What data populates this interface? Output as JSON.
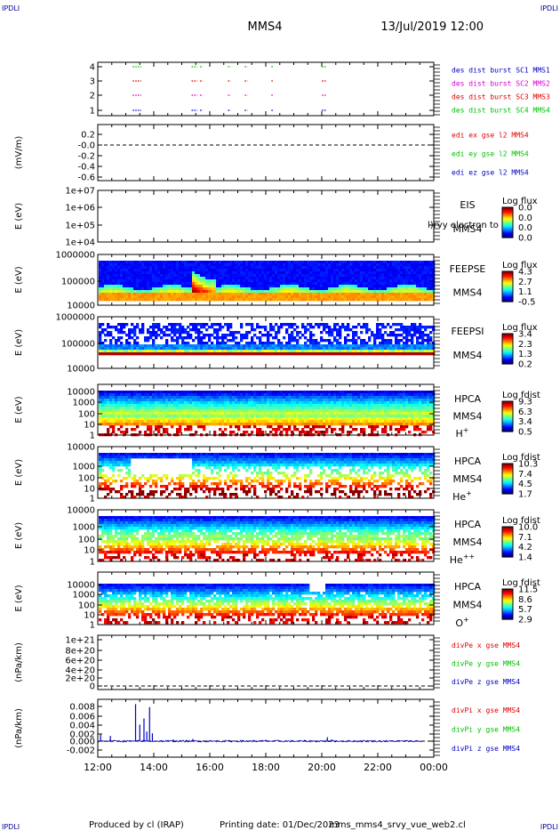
{
  "header": {
    "corner_tl": "IPDLI",
    "corner_tr": "IPDLI",
    "corner_bl": "IPDLI",
    "corner_br": "IPDLI",
    "mission": "MMS4",
    "datetime": "13/Jul/2019 12:00"
  },
  "footer": {
    "produced_by": "Produced by cl (IRAP)",
    "printing_date": "Printing date: 01/Dec/2023",
    "filename": "mms_mms4_srvy_vue_web2.cl"
  },
  "colors": {
    "red": "#e00000",
    "magenta": "#d000d0",
    "green": "#00c000",
    "blue": "#0000c0"
  },
  "chart_data": {
    "type": "multi-panel",
    "x_axis": {
      "range": [
        "12:00",
        "00:00"
      ],
      "tick_labels": [
        "12:00",
        "14:00",
        "16:00",
        "18:00",
        "20:00",
        "22:00",
        "00:00"
      ]
    },
    "panels": [
      {
        "type": "scatter",
        "id": "burst",
        "yticks": [
          "4",
          "3",
          "2",
          "1"
        ],
        "legend": [
          {
            "text": "des dist burst SC1 MMS1",
            "color": "blue"
          },
          {
            "text": "des dist burst SC2 MMS2",
            "color": "magenta"
          },
          {
            "text": "des dist burst SC3 MMS3",
            "color": "red"
          },
          {
            "text": "des dist burst SC4 MMS4",
            "color": "green"
          }
        ],
        "segments_hours": [
          [
            1.25,
            1.55
          ],
          [
            3.35,
            3.55
          ],
          [
            3.65,
            3.75
          ],
          [
            4.65,
            4.75
          ],
          [
            5.25,
            5.35
          ],
          [
            6.2,
            6.25
          ],
          [
            8.0,
            8.15
          ]
        ]
      },
      {
        "type": "line",
        "id": "edi",
        "ylabel": "(mV/m)",
        "yticks": [
          "0.2",
          "-0.0",
          "-0.2",
          "-0.4",
          "-0.6"
        ],
        "legend": [
          {
            "text": "edi ex gse l2 MMS4",
            "color": "red"
          },
          {
            "text": "edi ey gse l2 MMS4",
            "color": "green"
          },
          {
            "text": "edi ez gse l2 MMS4",
            "color": "blue"
          }
        ]
      },
      {
        "type": "heatmap",
        "id": "eis",
        "ylabel": "E (eV)",
        "yticks": [
          "1e+07",
          "1e+06",
          "1e+05",
          "1e+04"
        ],
        "label_lines": [
          "EIS",
          "MMS4"
        ],
        "overlay": "l)rvy electron to",
        "colorbar_title": "Log flux",
        "colorbar_ticks": [
          "0.0",
          "0.0",
          "0.0",
          "0.0"
        ]
      },
      {
        "type": "heatmap",
        "id": "feepse",
        "ylabel": "E (eV)",
        "yticks": [
          "1000000",
          "100000",
          "10000"
        ],
        "label_lines": [
          "FEEPSE",
          "MMS4"
        ],
        "colorbar_title": "Log flux",
        "colorbar_ticks": [
          "4.3",
          "2.7",
          "1.1",
          "-0.5"
        ]
      },
      {
        "type": "heatmap",
        "id": "feepsi",
        "ylabel": "E (eV)",
        "yticks": [
          "1000000",
          "100000",
          "10000"
        ],
        "label_lines": [
          "FEEPSI",
          "MMS4"
        ],
        "colorbar_title": "Log flux",
        "colorbar_ticks": [
          "3.4",
          "2.3",
          "1.3",
          "0.2"
        ]
      },
      {
        "type": "heatmap",
        "id": "hpca_h",
        "ylabel": "E (eV)",
        "yticks": [
          "10000",
          "1000",
          "100",
          "10",
          "1"
        ],
        "label_lines": [
          "HPCA",
          "MMS4"
        ],
        "species": "H",
        "species_sup": "+",
        "colorbar_title": "Log fdist",
        "colorbar_ticks": [
          "9.3",
          "6.3",
          "3.4",
          "0.5"
        ]
      },
      {
        "type": "heatmap",
        "id": "hpca_he",
        "ylabel": "E (eV)",
        "yticks": [
          "10000",
          "1000",
          "100",
          "10",
          "1"
        ],
        "label_lines": [
          "HPCA",
          "MMS4"
        ],
        "species": "He",
        "species_sup": "+",
        "colorbar_title": "Log fdist",
        "colorbar_ticks": [
          "10.3",
          "7.4",
          "4.5",
          "1.7"
        ]
      },
      {
        "type": "heatmap",
        "id": "hpca_hepp",
        "ylabel": "E (eV)",
        "yticks": [
          "10000",
          "1000",
          "100",
          "10",
          "1"
        ],
        "label_lines": [
          "HPCA",
          "MMS4"
        ],
        "species": "He",
        "species_sup": "++",
        "colorbar_title": "Log fdist",
        "colorbar_ticks": [
          "10.0",
          "7.1",
          "4.2",
          "1.4"
        ]
      },
      {
        "type": "heatmap",
        "id": "hpca_o",
        "ylabel": "E (eV)",
        "yticks": [
          "10000",
          "1000",
          "100",
          "10",
          "1"
        ],
        "label_lines": [
          "HPCA",
          "MMS4"
        ],
        "species": "O",
        "species_sup": "+",
        "colorbar_title": "Log fdist",
        "colorbar_ticks": [
          "11.5",
          "8.6",
          "5.7",
          "2.9"
        ]
      },
      {
        "type": "line",
        "id": "divpe",
        "ylabel": "(nPa/km)",
        "yticks": [
          "1e+21",
          "8e+20",
          "6e+20",
          "4e+20",
          "2e+20",
          "0"
        ],
        "legend": [
          {
            "text": "divPe x gse MMS4",
            "color": "red"
          },
          {
            "text": "divPe y gse MMS4",
            "color": "green"
          },
          {
            "text": "divPe z gse MMS4",
            "color": "blue"
          }
        ]
      },
      {
        "type": "line",
        "id": "divpi",
        "ylabel": "(nPa/km)",
        "yticks": [
          "0.008",
          "0.006",
          "0.004",
          "0.002",
          "0.000",
          "-0.002"
        ],
        "ylim": [
          -0.002,
          0.009
        ],
        "legend": [
          {
            "text": "divPi x gse MMS4",
            "color": "red"
          },
          {
            "text": "divPi y gse MMS4",
            "color": "green"
          },
          {
            "text": "divPi z gse MMS4",
            "color": "blue"
          }
        ],
        "spikes": [
          {
            "x_hour": 0.1,
            "y": 0.0015
          },
          {
            "x_hour": 0.45,
            "y": 0.0012
          },
          {
            "x_hour": 1.35,
            "y": 0.0085
          },
          {
            "x_hour": 1.5,
            "y": 0.0038
          },
          {
            "x_hour": 1.65,
            "y": 0.0052
          },
          {
            "x_hour": 1.75,
            "y": 0.0022
          },
          {
            "x_hour": 1.85,
            "y": 0.0078
          },
          {
            "x_hour": 1.95,
            "y": 0.0018
          },
          {
            "x_hour": 2.7,
            "y": 0.0004
          },
          {
            "x_hour": 3.4,
            "y": 0.0005
          },
          {
            "x_hour": 6.0,
            "y": 0.0003
          },
          {
            "x_hour": 8.2,
            "y": 0.0009
          },
          {
            "x_hour": 8.35,
            "y": 0.0004
          }
        ]
      }
    ]
  }
}
